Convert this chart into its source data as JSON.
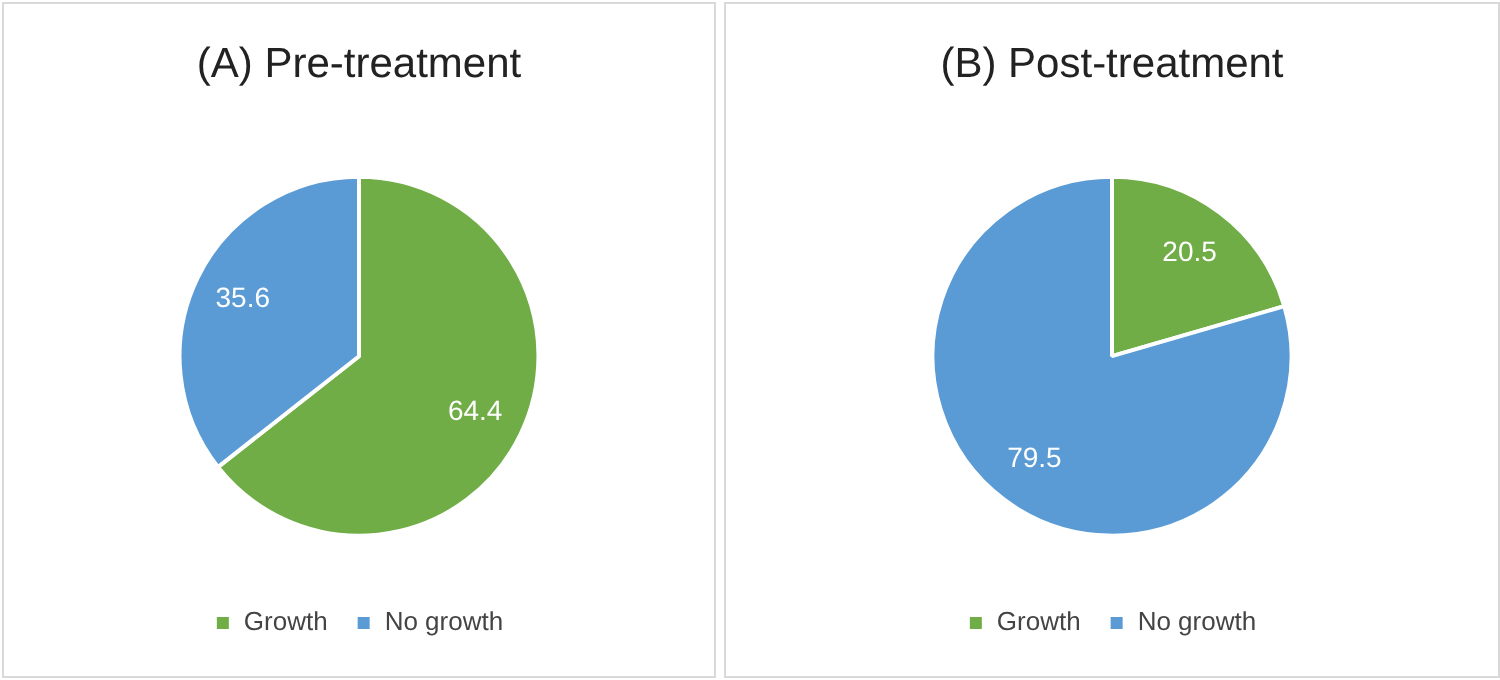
{
  "chart_data": [
    {
      "type": "pie",
      "title": "(A) Pre-treatment",
      "categories": [
        "Growth",
        "No growth"
      ],
      "values": [
        64.4,
        35.6
      ],
      "colors": [
        "#70ad47",
        "#5b9bd5"
      ],
      "data_labels": true,
      "legend": "bottom"
    },
    {
      "type": "pie",
      "title": "(B) Post-treatment",
      "categories": [
        "Growth",
        "No growth"
      ],
      "values": [
        20.5,
        79.5
      ],
      "colors": [
        "#70ad47",
        "#5b9bd5"
      ],
      "data_labels": true,
      "legend": "bottom"
    }
  ]
}
